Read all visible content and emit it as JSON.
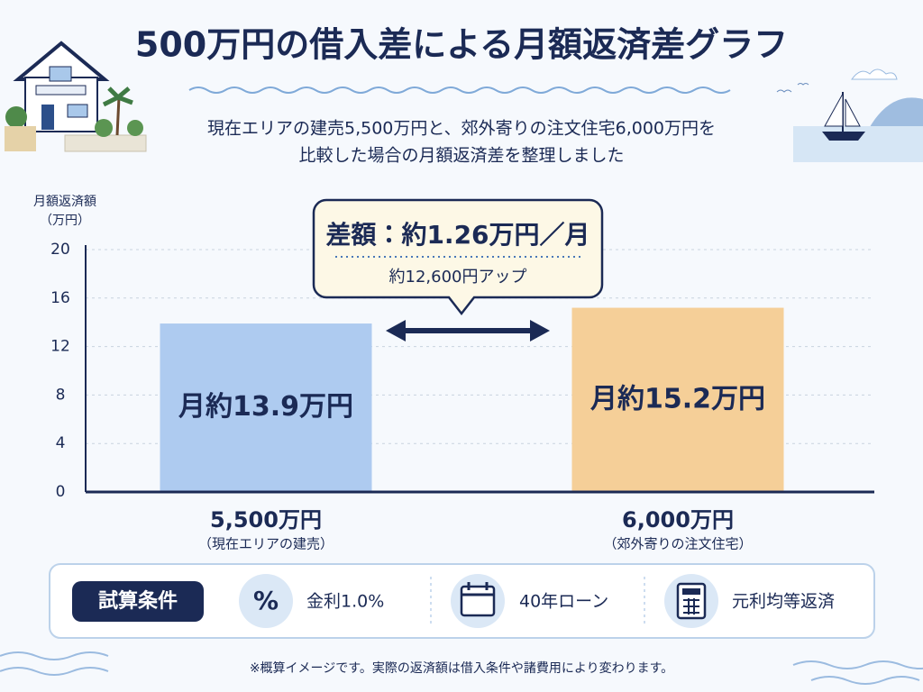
{
  "chart_data": {
    "type": "bar",
    "title": "500万円の借入差による月額返済差グラフ",
    "subtitle": [
      "現在エリアの建売5,500万円と、郊外寄りの注文住宅6,000万円を",
      "比較した場合の月額返済差を整理しました"
    ],
    "y_label": "月額返済額",
    "y_unit": "（万円）",
    "categories": [
      "5,500万円",
      "6,000万円"
    ],
    "category_notes": [
      "（現在エリアの建売）",
      "（郊外寄りの注文住宅）"
    ],
    "values": [
      13.9,
      15.2
    ],
    "value_labels": [
      "月約13.9万円",
      "月約15.2万円"
    ],
    "colors": [
      "#aecbf0",
      "#f5cf98"
    ],
    "ylim": [
      0,
      20
    ],
    "yticks": [
      0,
      4,
      8,
      12,
      16,
      20
    ],
    "grid": true,
    "annotation": {
      "main": "差額：約1.26万円／月",
      "sub": "約12,600円アップ"
    },
    "conditions": {
      "title": "試算条件",
      "items": [
        "金利1.0%",
        "40年ローン",
        "元利均等返済"
      ]
    },
    "footnote": "※概算イメージです。実際の返済額は借入条件や諸費用により変わります。"
  }
}
